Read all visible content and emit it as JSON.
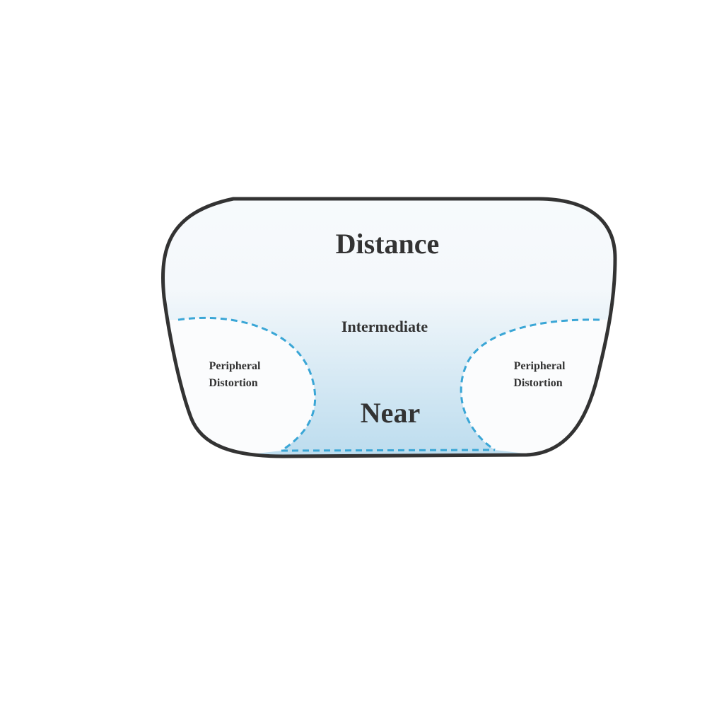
{
  "diagram": {
    "zones": {
      "distance": "Distance",
      "intermediate": "Intermediate",
      "near": "Near",
      "peripheral_left": [
        "Peripheral",
        "Distortion"
      ],
      "peripheral_right": [
        "Peripheral",
        "Distortion"
      ]
    },
    "colors": {
      "lens_outline": "#333333",
      "dashed_boundary": "#3aa6d6",
      "gradient_top": "#f7fafc",
      "gradient_bottom": "#bcdcee",
      "text": "#333333"
    }
  }
}
